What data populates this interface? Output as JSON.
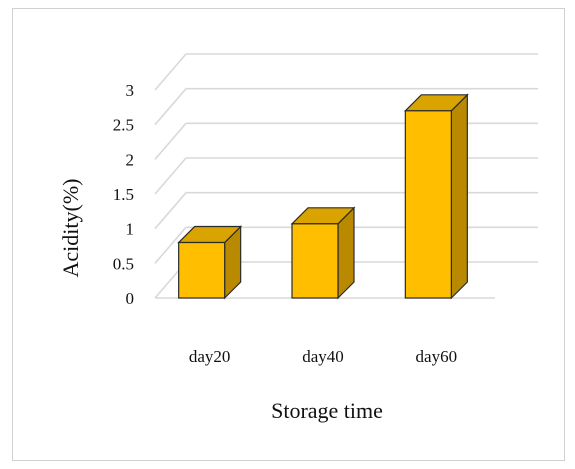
{
  "chart_data": {
    "type": "bar",
    "title": "",
    "xlabel": "Storage time",
    "ylabel": "Acidity(%)",
    "categories": [
      "day20",
      "day40",
      "day60"
    ],
    "values": [
      0.8,
      1.07,
      2.7
    ],
    "ylim": [
      0,
      3
    ],
    "yticks": [
      "0",
      "0.5",
      "1",
      "1.5",
      "2",
      "2.5",
      "3"
    ],
    "grid": true,
    "legend": "none",
    "style": "3d-bar",
    "colors": {
      "front": "#FFBF00",
      "side": "#B98A00",
      "top": "#D9A400",
      "edge": "#2b2b2b",
      "grid": "#d9d9d9"
    }
  }
}
